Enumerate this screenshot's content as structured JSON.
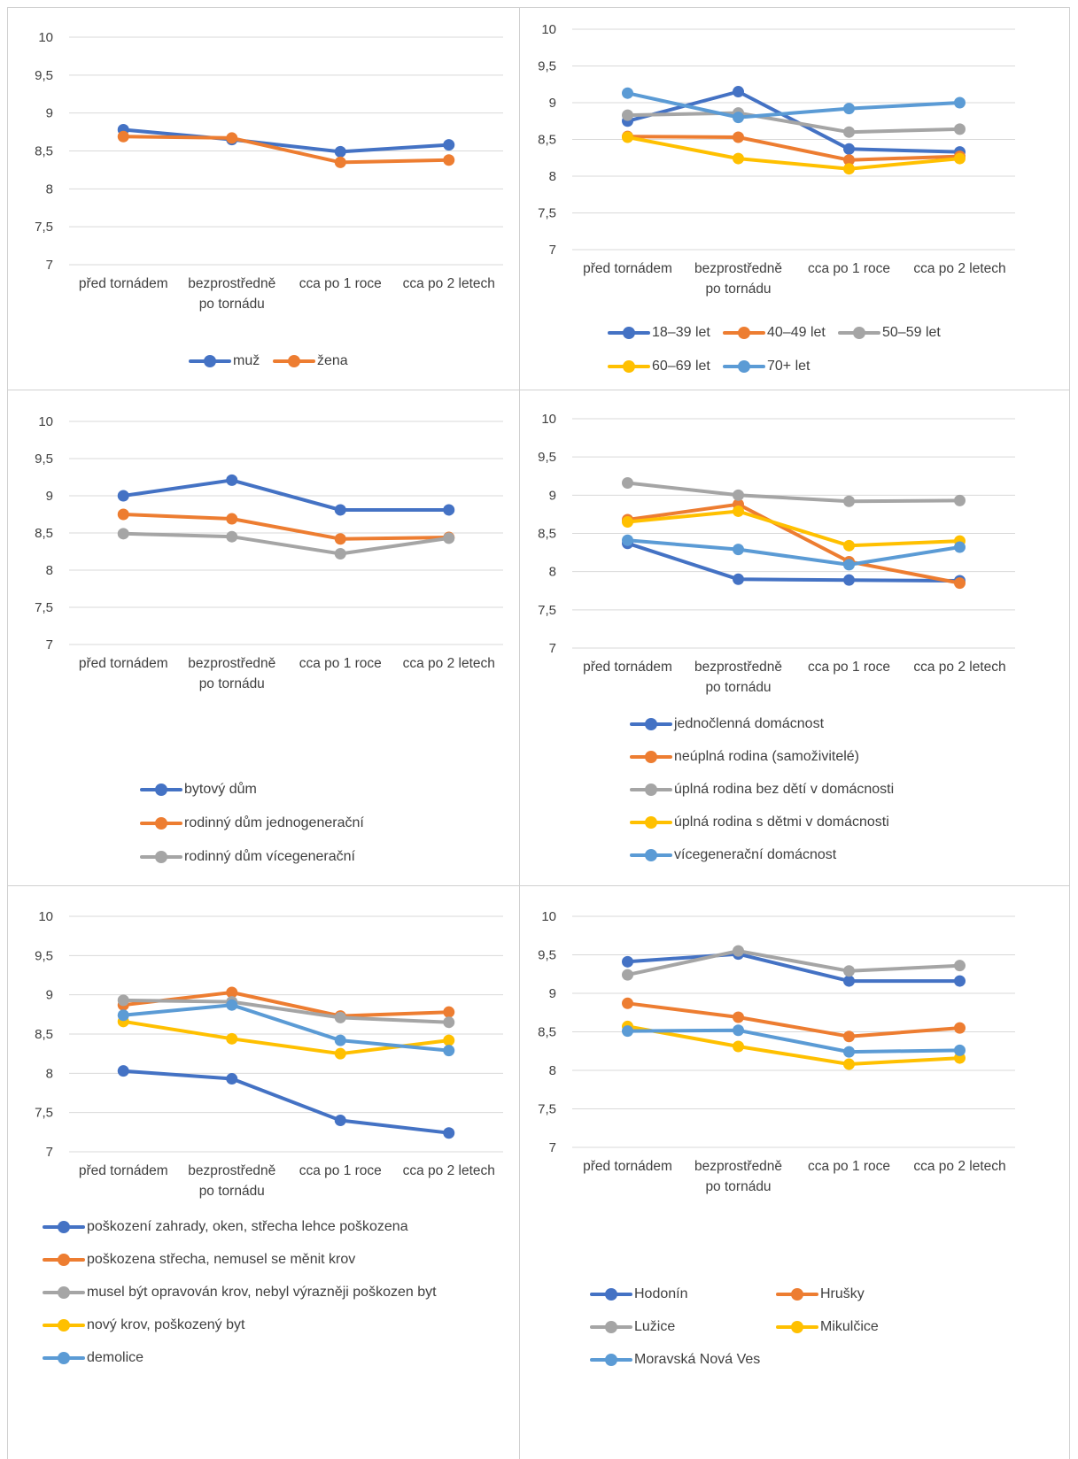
{
  "chart_data": [
    {
      "type": "line",
      "categories": [
        "před tornádem",
        "bezprostředně po tornádu",
        "cca po 1 roce",
        "cca po 2 letech"
      ],
      "category_lines": [
        [
          "před tornádem"
        ],
        [
          "bezprostředně",
          "po tornádu"
        ],
        [
          "cca po 1 roce"
        ],
        [
          "cca po 2 letech"
        ]
      ],
      "ylim": [
        7,
        10
      ],
      "y_ticks": [
        "10",
        "9,5",
        "9",
        "8,5",
        "8",
        "7,5",
        "7"
      ],
      "grid": true,
      "legend_position": "bottom",
      "series": [
        {
          "name": "muž",
          "color": "#4472C4",
          "values": [
            8.78,
            8.65,
            8.49,
            8.58
          ]
        },
        {
          "name": "žena",
          "color": "#ED7D31",
          "values": [
            8.69,
            8.67,
            8.35,
            8.38
          ]
        }
      ]
    },
    {
      "type": "line",
      "categories": [
        "před tornádem",
        "bezprostředně po tornádu",
        "cca po 1 roce",
        "cca po 2 letech"
      ],
      "category_lines": [
        [
          "před tornádem"
        ],
        [
          "bezprostředně",
          "po tornádu"
        ],
        [
          "cca po 1 roce"
        ],
        [
          "cca po 2 letech"
        ]
      ],
      "ylim": [
        7,
        10
      ],
      "y_ticks": [
        "10",
        "9,5",
        "9",
        "8,5",
        "8",
        "7,5",
        "7"
      ],
      "grid": true,
      "legend_position": "bottom",
      "series": [
        {
          "name": "18–39 let",
          "color": "#4472C4",
          "values": [
            8.75,
            9.15,
            8.37,
            8.33
          ]
        },
        {
          "name": "40–49 let",
          "color": "#ED7D31",
          "values": [
            8.54,
            8.53,
            8.22,
            8.27
          ]
        },
        {
          "name": "50–59 let",
          "color": "#A5A5A5",
          "values": [
            8.83,
            8.86,
            8.6,
            8.64
          ]
        },
        {
          "name": "60–69 let",
          "color": "#FFC000",
          "values": [
            8.53,
            8.24,
            8.1,
            8.24
          ]
        },
        {
          "name": "70+ let",
          "color": "#5B9BD5",
          "values": [
            9.13,
            8.8,
            8.92,
            9.0
          ]
        }
      ]
    },
    {
      "type": "line",
      "categories": [
        "před tornádem",
        "bezprostředně po tornádu",
        "cca po 1 roce",
        "cca po 2 letech"
      ],
      "category_lines": [
        [
          "před tornádem"
        ],
        [
          "bezprostředně",
          "po tornádu"
        ],
        [
          "cca po 1 roce"
        ],
        [
          "cca po 2 letech"
        ]
      ],
      "ylim": [
        7,
        10
      ],
      "y_ticks": [
        "10",
        "9,5",
        "9",
        "8,5",
        "8",
        "7,5",
        "7"
      ],
      "grid": true,
      "legend_position": "bottom",
      "series": [
        {
          "name": "bytový dům",
          "color": "#4472C4",
          "values": [
            9.0,
            9.21,
            8.81,
            8.81
          ]
        },
        {
          "name": "rodinný dům jednogenerační",
          "color": "#ED7D31",
          "values": [
            8.75,
            8.69,
            8.42,
            8.44
          ]
        },
        {
          "name": "rodinný dům vícegenerační",
          "color": "#A5A5A5",
          "values": [
            8.49,
            8.45,
            8.22,
            8.43
          ]
        }
      ]
    },
    {
      "type": "line",
      "categories": [
        "před tornádem",
        "bezprostředně po tornádu",
        "cca po 1 roce",
        "cca po 2 letech"
      ],
      "category_lines": [
        [
          "před tornádem"
        ],
        [
          "bezprostředně",
          "po tornádu"
        ],
        [
          "cca po 1 roce"
        ],
        [
          "cca po 2 letech"
        ]
      ],
      "ylim": [
        7,
        10
      ],
      "y_ticks": [
        "10",
        "9,5",
        "9",
        "8,5",
        "8",
        "7,5",
        "7"
      ],
      "grid": true,
      "legend_position": "bottom",
      "series": [
        {
          "name": "jednočlenná domácnost",
          "color": "#4472C4",
          "values": [
            8.37,
            7.9,
            7.89,
            7.88
          ]
        },
        {
          "name": "neúplná rodina (samoživitelé)",
          "color": "#ED7D31",
          "values": [
            8.68,
            8.88,
            8.13,
            7.85
          ]
        },
        {
          "name": "úplná rodina bez dětí v domácnosti",
          "color": "#A5A5A5",
          "values": [
            9.16,
            9.0,
            8.92,
            8.93
          ]
        },
        {
          "name": "úplná rodina s dětmi v domácnosti",
          "color": "#FFC000",
          "values": [
            8.65,
            8.79,
            8.34,
            8.4
          ]
        },
        {
          "name": "vícegenerační domácnost",
          "color": "#5B9BD5",
          "values": [
            8.41,
            8.29,
            8.09,
            8.32
          ]
        }
      ]
    },
    {
      "type": "line",
      "categories": [
        "před tornádem",
        "bezprostředně po tornádu",
        "cca po 1 roce",
        "cca po 2 letech"
      ],
      "category_lines": [
        [
          "před tornádem"
        ],
        [
          "bezprostředně",
          "po tornádu"
        ],
        [
          "cca po 1 roce"
        ],
        [
          "cca po 2 letech"
        ]
      ],
      "ylim": [
        7,
        10
      ],
      "y_ticks": [
        "10",
        "9,5",
        "9",
        "8,5",
        "8",
        "7,5",
        "7"
      ],
      "grid": true,
      "legend_position": "bottom",
      "series": [
        {
          "name": "poškození zahrady, oken, střecha lehce poškozena",
          "color": "#4472C4",
          "values": [
            8.03,
            7.93,
            7.4,
            7.24
          ]
        },
        {
          "name": "poškozena střecha, nemusel se měnit krov",
          "color": "#ED7D31",
          "values": [
            8.87,
            9.03,
            8.73,
            8.78
          ]
        },
        {
          "name": "musel být opravován krov, nebyl výrazněji poškozen byt",
          "color": "#A5A5A5",
          "values": [
            8.93,
            8.91,
            8.71,
            8.65
          ]
        },
        {
          "name": "nový krov, poškozený byt",
          "color": "#FFC000",
          "values": [
            8.66,
            8.44,
            8.25,
            8.42
          ]
        },
        {
          "name": "demolice",
          "color": "#5B9BD5",
          "values": [
            8.74,
            8.87,
            8.42,
            8.29
          ]
        }
      ]
    },
    {
      "type": "line",
      "categories": [
        "před tornádem",
        "bezprostředně po tornádu",
        "cca po 1 roce",
        "cca po 2 letech"
      ],
      "category_lines": [
        [
          "před tornádem"
        ],
        [
          "bezprostředně",
          "po tornádu"
        ],
        [
          "cca po 1 roce"
        ],
        [
          "cca po 2 letech"
        ]
      ],
      "ylim": [
        7,
        10
      ],
      "y_ticks": [
        "10",
        "9,5",
        "9",
        "8,5",
        "8",
        "7,5",
        "7"
      ],
      "grid": true,
      "legend_position": "bottom",
      "series": [
        {
          "name": "Hodonín",
          "color": "#4472C4",
          "values": [
            9.41,
            9.51,
            9.16,
            9.16
          ]
        },
        {
          "name": "Hrušky",
          "color": "#ED7D31",
          "values": [
            8.87,
            8.69,
            8.44,
            8.55
          ]
        },
        {
          "name": "Lužice",
          "color": "#A5A5A5",
          "values": [
            9.24,
            9.55,
            9.29,
            9.36
          ]
        },
        {
          "name": "Mikulčice",
          "color": "#FFC000",
          "values": [
            8.57,
            8.31,
            8.08,
            8.16
          ]
        },
        {
          "name": "Moravská Nová Ves",
          "color": "#5B9BD5",
          "values": [
            8.51,
            8.52,
            8.24,
            8.26
          ]
        }
      ]
    }
  ]
}
